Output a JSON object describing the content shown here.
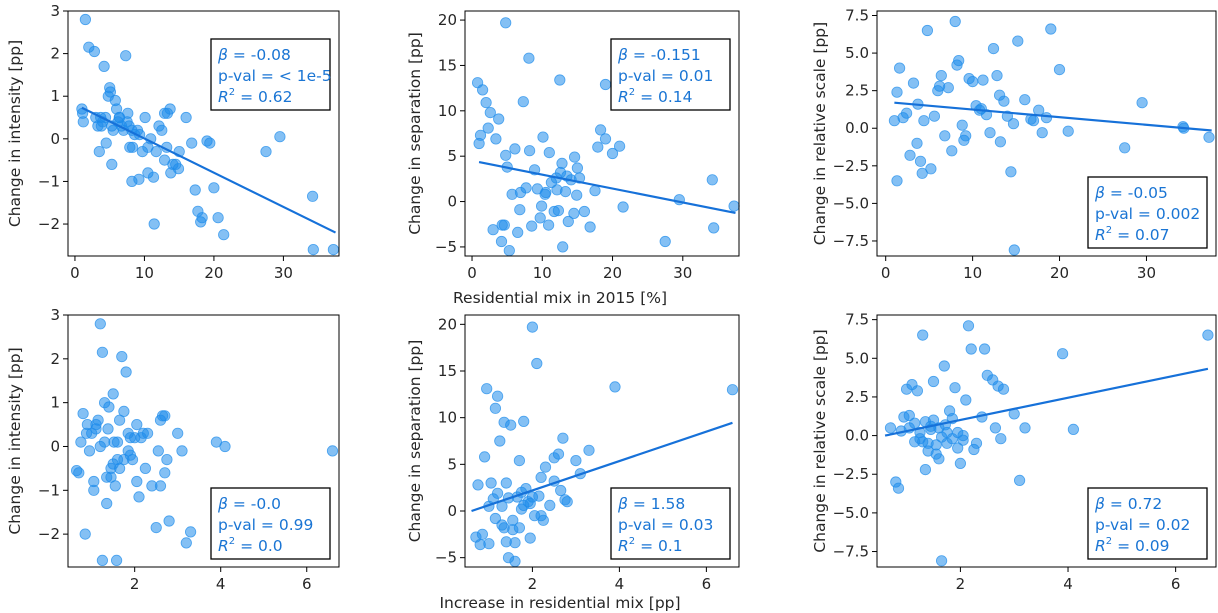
{
  "colors": {
    "points": "#1f8ceb",
    "line": "#1671d9",
    "text": "#1a75d4",
    "axis": "#000000"
  },
  "figure": {
    "row_xlabels": [
      "Residential mix in 2015 [%]",
      "Increase in residential mix [pp]"
    ]
  },
  "chart_data": [
    {
      "type": "scatter",
      "xlabel": "",
      "ylabel": "Change in intensity [pp]",
      "xlim": [
        -1,
        38
      ],
      "ylim": [
        -2.75,
        3
      ],
      "xticks": [
        0,
        10,
        20,
        30
      ],
      "xtick_labels": [
        "0",
        "10",
        "20",
        "30"
      ],
      "yticks": [
        -2,
        -1,
        0,
        1,
        2,
        3
      ],
      "ytick_labels": [
        "−2",
        "−1",
        "0",
        "1",
        "2",
        "3"
      ],
      "stats": {
        "beta": "-0.08",
        "pval": "< 1e-5",
        "r2": "0.62"
      },
      "stat_box": "top-right",
      "fit": {
        "x": [
          1,
          37.5
        ],
        "y": [
          0.73,
          -2.2
        ]
      },
      "x": [
        1.0,
        1.2,
        1.5,
        2.0,
        1.1,
        2.8,
        3.0,
        3.3,
        3.5,
        3.7,
        4.0,
        4.2,
        4.4,
        4.8,
        5.0,
        5.1,
        5.3,
        5.5,
        5.8,
        6.0,
        6.2,
        6.4,
        6.7,
        7.0,
        7.3,
        7.6,
        7.9,
        8.2,
        8.6,
        9.0,
        9.3,
        9.7,
        10.1,
        10.5,
        10.9,
        11.3,
        11.7,
        12.1,
        12.5,
        12.9,
        13.3,
        13.7,
        14.1,
        14.5,
        14.9,
        15.0,
        16.0,
        16.8,
        17.3,
        17.7,
        18.1,
        18.3,
        19.0,
        19.4,
        20.0,
        20.6,
        21.4,
        27.5,
        29.5,
        34.2,
        34.3,
        37.2,
        6.4,
        9.2,
        8.2,
        10.5,
        11.4,
        12.9,
        5.3,
        7.5,
        13.2,
        13.8,
        7.8,
        8.3,
        3.8,
        4.5
      ],
      "y": [
        0.7,
        0.4,
        2.8,
        2.15,
        0.6,
        2.05,
        0.5,
        0.3,
        -0.3,
        0.5,
        0.4,
        1.7,
        0.5,
        1.0,
        1.2,
        1.1,
        0.3,
        0.2,
        0.9,
        0.7,
        0.4,
        0.5,
        0.3,
        0.2,
        1.95,
        0.6,
        -0.2,
        0.2,
        0.1,
        0.2,
        0.1,
        -0.3,
        0.5,
        -0.2,
        0.0,
        -0.9,
        -0.3,
        0.3,
        0.2,
        0.6,
        0.6,
        0.7,
        -0.6,
        -0.6,
        -0.7,
        -0.3,
        0.5,
        -0.1,
        -1.2,
        -1.7,
        -1.95,
        -1.85,
        -0.05,
        -0.1,
        -1.15,
        -1.85,
        -2.25,
        -0.3,
        0.05,
        -1.35,
        -2.6,
        -2.6,
        0.5,
        -0.95,
        -1.0,
        -0.8,
        -2.0,
        -0.5,
        -0.6,
        0.4,
        -0.2,
        -0.8,
        0.3,
        -0.2,
        0.3,
        -0.1
      ]
    },
    {
      "type": "scatter",
      "xlabel": "Residential mix in 2015 [%]",
      "ylabel": "Change in separation [pp]",
      "xlim": [
        -1,
        38
      ],
      "ylim": [
        -6,
        21
      ],
      "xticks": [
        0,
        10,
        20,
        30
      ],
      "xtick_labels": [
        "0",
        "10",
        "20",
        "30"
      ],
      "yticks": [
        -5,
        0,
        5,
        10,
        15,
        20
      ],
      "ytick_labels": [
        "−5",
        "0",
        "5",
        "10",
        "15",
        "20"
      ],
      "stats": {
        "beta": "-0.151",
        "pval": "0.01",
        "r2": "0.14"
      },
      "stat_box": "top-right",
      "fit": {
        "x": [
          1,
          37.5
        ],
        "y": [
          4.35,
          -1.25
        ]
      },
      "x": [
        0.8,
        1.0,
        1.2,
        1.5,
        2.0,
        2.3,
        2.6,
        3.0,
        3.4,
        3.8,
        4.2,
        4.6,
        4.8,
        5.0,
        5.3,
        5.7,
        6.1,
        6.5,
        6.9,
        7.3,
        7.7,
        8.1,
        8.5,
        8.9,
        9.3,
        9.7,
        10.1,
        10.5,
        10.9,
        11.3,
        11.7,
        12.1,
        12.5,
        12.9,
        13.3,
        13.7,
        14.1,
        14.5,
        14.9,
        15.3,
        16.0,
        16.8,
        17.5,
        17.9,
        18.3,
        19.0,
        20.0,
        21.0,
        21.5,
        27.5,
        29.5,
        34.2,
        34.4,
        37.3,
        4.8,
        8.2,
        12.3,
        12.6,
        19.0,
        4.3,
        6.8,
        10.4,
        11.0,
        12.0,
        12.8,
        13.5,
        14.6,
        15.0,
        9.9
      ],
      "y": [
        13.1,
        6.4,
        7.3,
        12.3,
        10.9,
        8.1,
        9.8,
        -3.1,
        6.9,
        9.1,
        -4.4,
        -2.6,
        19.7,
        3.8,
        -5.4,
        0.8,
        5.8,
        -3.4,
        1.0,
        11.0,
        1.5,
        15.8,
        -2.7,
        3.5,
        1.4,
        -1.8,
        7.1,
        1.0,
        -2.6,
        2.1,
        -1.1,
        1.3,
        13.4,
        -5.0,
        1.1,
        -2.2,
        2.4,
        -1.3,
        0.7,
        2.6,
        -1.1,
        -2.8,
        1.2,
        6.0,
        7.9,
        12.9,
        5.3,
        6.1,
        -0.6,
        -4.4,
        0.2,
        2.4,
        -2.9,
        -0.5,
        5.1,
        5.6,
        -1.0,
        3.2,
        6.9,
        -2.6,
        -0.9,
        0.8,
        5.4,
        2.6,
        4.2,
        2.8,
        4.9,
        3.7,
        -0.5
      ]
    },
    {
      "type": "scatter",
      "xlabel": "",
      "ylabel": "Change in relative scale [pp]",
      "xlim": [
        -1,
        38
      ],
      "ylim": [
        -8.5,
        7.8
      ],
      "xticks": [
        0,
        10,
        20,
        30
      ],
      "xtick_labels": [
        "0",
        "10",
        "20",
        "30"
      ],
      "yticks": [
        -7.5,
        -5.0,
        -2.5,
        0.0,
        2.5,
        5.0,
        7.5
      ],
      "ytick_labels": [
        "−7.5",
        "−5.0",
        "−2.5",
        "0.0",
        "2.5",
        "5.0",
        "7.5"
      ],
      "stats": {
        "beta": "-0.05",
        "pval": "0.002",
        "r2": "0.07"
      },
      "stat_box": "bottom-right",
      "fit": {
        "x": [
          1,
          37.5
        ],
        "y": [
          1.7,
          -0.15
        ]
      },
      "x": [
        1.0,
        1.3,
        1.6,
        2.0,
        2.4,
        2.8,
        3.2,
        3.6,
        4.0,
        4.4,
        4.8,
        5.2,
        5.6,
        6.0,
        6.4,
        6.8,
        7.2,
        7.6,
        8.0,
        8.4,
        8.8,
        9.2,
        9.6,
        10.0,
        10.4,
        10.8,
        11.2,
        11.6,
        12.0,
        12.4,
        12.8,
        13.2,
        13.6,
        14.0,
        14.4,
        14.8,
        15.2,
        16.0,
        17.0,
        17.6,
        18.0,
        18.5,
        19.0,
        20.0,
        21.0,
        27.5,
        29.5,
        34.2,
        34.3,
        37.2,
        4.2,
        6.2,
        9.0,
        11.0,
        13.1,
        14.7,
        1.3,
        3.7,
        8.2,
        16.7
      ],
      "y": [
        0.5,
        -3.5,
        4.0,
        0.7,
        1.0,
        -1.8,
        3.0,
        -1.0,
        -2.2,
        0.5,
        6.5,
        -2.7,
        0.8,
        2.5,
        3.5,
        -0.5,
        2.7,
        -1.5,
        7.1,
        4.5,
        0.2,
        -0.5,
        3.3,
        3.1,
        1.5,
        1.2,
        3.2,
        0.9,
        -0.3,
        5.3,
        3.5,
        -0.9,
        1.8,
        0.8,
        -2.9,
        -8.1,
        5.8,
        1.9,
        0.5,
        1.2,
        -0.3,
        0.7,
        6.6,
        3.9,
        -0.2,
        -1.3,
        1.7,
        0.1,
        0.0,
        -0.6,
        -3.0,
        2.8,
        -0.8,
        1.3,
        2.2,
        0.3,
        2.4,
        1.6,
        4.2,
        0.6
      ]
    },
    {
      "type": "scatter",
      "xlabel": "",
      "ylabel": "Change in intensity [pp]",
      "xlim": [
        0.45,
        6.75
      ],
      "ylim": [
        -2.75,
        3
      ],
      "xticks": [
        2,
        4,
        6
      ],
      "xtick_labels": [
        "2",
        "4",
        "6"
      ],
      "yticks": [
        -2,
        -1,
        0,
        1,
        2,
        3
      ],
      "ytick_labels": [
        "−2",
        "−1",
        "0",
        "1",
        "2",
        "3"
      ],
      "stats": {
        "beta": "-0.0",
        "pval": "0.99",
        "r2": "0.0"
      },
      "stat_box": "bottom-right",
      "x": [
        0.65,
        0.7,
        0.75,
        0.8,
        0.85,
        0.9,
        0.95,
        1.0,
        1.05,
        1.1,
        1.15,
        1.2,
        1.25,
        1.3,
        1.35,
        1.4,
        1.45,
        1.5,
        1.55,
        1.6,
        1.65,
        1.7,
        1.75,
        1.8,
        1.85,
        1.9,
        1.95,
        2.0,
        2.05,
        2.1,
        2.2,
        2.3,
        2.4,
        2.5,
        2.55,
        2.6,
        2.65,
        2.7,
        2.75,
        2.8,
        3.0,
        3.1,
        3.2,
        3.3,
        3.9,
        4.1,
        6.6,
        1.25,
        1.3,
        1.5,
        1.65,
        0.88,
        1.05,
        1.2,
        1.38,
        1.58,
        1.75,
        2.05,
        2.25,
        2.7,
        1.1,
        1.45,
        1.85,
        2.15,
        1.35,
        1.6,
        1.9,
        2.6,
        1.52
      ],
      "y": [
        -0.55,
        -0.6,
        0.1,
        0.75,
        -2.0,
        0.5,
        -0.1,
        0.3,
        -0.8,
        0.5,
        0.6,
        2.8,
        2.15,
        1.0,
        -1.3,
        0.9,
        -0.5,
        1.2,
        -0.9,
        -0.3,
        0.6,
        2.05,
        0.8,
        1.7,
        0.3,
        0.2,
        -0.3,
        0.2,
        -0.8,
        -1.15,
        0.3,
        0.3,
        -0.9,
        -1.85,
        -0.1,
        0.6,
        0.7,
        -0.6,
        -0.3,
        -1.7,
        0.3,
        -0.1,
        -2.2,
        -1.95,
        0.1,
        0.0,
        -0.1,
        -2.6,
        0.1,
        -0.4,
        -0.5,
        0.3,
        -1.0,
        0.0,
        0.4,
        -2.6,
        -0.3,
        0.5,
        -0.5,
        0.7,
        0.4,
        -0.7,
        -0.1,
        0.2,
        -0.7,
        0.1,
        -0.2,
        -0.9,
        0.1
      ]
    },
    {
      "type": "scatter",
      "xlabel": "Increase in residential mix [pp]",
      "ylabel": "Change in separation [pp]",
      "xlim": [
        0.45,
        6.75
      ],
      "ylim": [
        -6,
        21
      ],
      "xticks": [
        2,
        4,
        6
      ],
      "xtick_labels": [
        "2",
        "4",
        "6"
      ],
      "yticks": [
        -5,
        0,
        5,
        10,
        15,
        20
      ],
      "ytick_labels": [
        "−5",
        "0",
        "5",
        "10",
        "15",
        "20"
      ],
      "stats": {
        "beta": "1.58",
        "pval": "0.03",
        "r2": "0.1"
      },
      "stat_box": "bottom-right",
      "fit": {
        "x": [
          0.6,
          6.6
        ],
        "y": [
          0.0,
          9.45
        ]
      },
      "x": [
        0.7,
        0.75,
        0.8,
        0.85,
        0.9,
        0.95,
        1.0,
        1.05,
        1.1,
        1.15,
        1.2,
        1.25,
        1.3,
        1.35,
        1.4,
        1.45,
        1.5,
        1.55,
        1.6,
        1.65,
        1.7,
        1.75,
        1.8,
        1.85,
        1.9,
        1.95,
        2.0,
        2.05,
        2.1,
        2.15,
        2.2,
        2.3,
        2.4,
        2.5,
        2.6,
        2.7,
        2.75,
        2.8,
        3.0,
        3.1,
        3.3,
        3.9,
        4.1,
        6.6,
        1.3,
        1.45,
        1.55,
        1.75,
        1.95,
        2.25,
        1.0,
        1.2,
        1.4,
        1.6,
        1.8,
        2.0,
        2.2,
        2.5,
        2.65,
        1.35,
        1.15,
        1.7
      ],
      "y": [
        -2.8,
        2.8,
        -3.6,
        -2.5,
        5.8,
        13.1,
        -3.5,
        3.0,
        1.3,
        11.0,
        12.3,
        7.5,
        -1.5,
        9.5,
        -3.3,
        -5.0,
        9.2,
        -2.0,
        -5.4,
        1.5,
        5.4,
        2.0,
        9.6,
        2.4,
        1.0,
        -2.9,
        19.7,
        -0.5,
        15.8,
        1.6,
        3.6,
        4.7,
        0.6,
        5.7,
        6.1,
        7.8,
        1.2,
        1.0,
        5.4,
        4.0,
        6.5,
        13.3,
        0.2,
        13.0,
        0.5,
        1.4,
        -1.0,
        0.2,
        0.8,
        -1.0,
        0.5,
        1.9,
        3.0,
        -3.4,
        0.6,
        1.5,
        -0.5,
        3.2,
        2.2,
        -1.8,
        -0.8,
        -1.8
      ]
    },
    {
      "type": "scatter",
      "xlabel": "",
      "ylabel": "Change in relative scale [pp]",
      "xlim": [
        0.45,
        6.75
      ],
      "ylim": [
        -8.5,
        7.8
      ],
      "xticks": [
        2,
        4,
        6
      ],
      "xtick_labels": [
        "2",
        "4",
        "6"
      ],
      "yticks": [
        -7.5,
        -5.0,
        -2.5,
        0.0,
        2.5,
        5.0,
        7.5
      ],
      "ytick_labels": [
        "−7.5",
        "−5.0",
        "−2.5",
        "0.0",
        "2.5",
        "5.0",
        "7.5"
      ],
      "stats": {
        "beta": "0.72",
        "pval": "0.02",
        "r2": "0.09"
      },
      "stat_box": "bottom-right",
      "fit": {
        "x": [
          0.6,
          6.6
        ],
        "y": [
          0.0,
          4.32
        ]
      },
      "x": [
        0.7,
        0.8,
        0.85,
        0.9,
        0.95,
        1.0,
        1.05,
        1.1,
        1.15,
        1.2,
        1.25,
        1.3,
        1.35,
        1.4,
        1.45,
        1.5,
        1.55,
        1.6,
        1.65,
        1.7,
        1.75,
        1.8,
        1.85,
        1.9,
        1.95,
        2.0,
        2.05,
        2.1,
        2.15,
        2.2,
        2.3,
        2.4,
        2.5,
        2.6,
        2.65,
        2.7,
        2.75,
        2.8,
        3.0,
        3.1,
        3.2,
        3.9,
        4.1,
        6.6,
        1.3,
        1.5,
        1.6,
        1.75,
        1.95,
        1.15,
        1.4,
        1.85,
        2.05,
        2.45,
        1.05,
        1.25,
        1.55,
        1.65,
        2.25,
        1.45,
        1.72,
        1.35
      ],
      "y": [
        0.5,
        -3.0,
        -3.4,
        0.3,
        1.2,
        3.0,
        1.3,
        3.3,
        -0.4,
        2.9,
        0.2,
        6.5,
        -2.2,
        -0.5,
        0.6,
        3.5,
        -1.2,
        0.5,
        -8.1,
        4.5,
        -0.5,
        1.6,
        -0.2,
        3.1,
        0.2,
        -1.8,
        0.0,
        2.3,
        7.1,
        5.6,
        -0.5,
        1.2,
        3.9,
        3.6,
        0.5,
        3.2,
        -0.2,
        3.0,
        1.4,
        -2.9,
        0.5,
        5.3,
        0.4,
        6.5,
        -0.4,
        1.0,
        -1.5,
        0.2,
        -0.8,
        0.8,
        -1.0,
        1.1,
        -0.3,
        5.6,
        0.5,
        -0.2,
        -0.6,
        -0.1,
        -0.9,
        0.4,
        0.7,
        0.9
      ]
    }
  ]
}
